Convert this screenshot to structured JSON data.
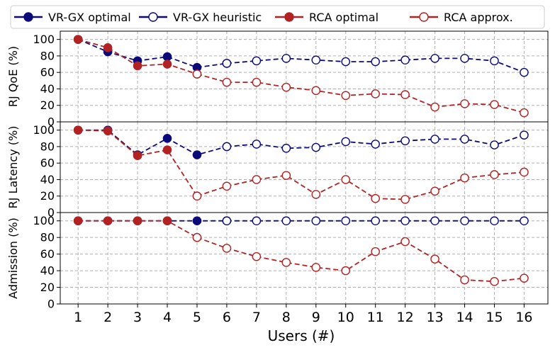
{
  "legend": [
    {
      "label": "VR-GX optimal",
      "color": "#0a0a78",
      "filled": true
    },
    {
      "label": "VR-GX heuristic",
      "color": "#0a0a78",
      "filled": false
    },
    {
      "label": "RCA optimal",
      "color": "#b22222",
      "filled": true
    },
    {
      "label": "RCA approx.",
      "color": "#b22222",
      "filled": false
    }
  ],
  "xlabel": "Users (#)",
  "chart_data": [
    {
      "type": "line",
      "ylabel": "RJ QoE (%)",
      "x": [
        1,
        2,
        3,
        4,
        5,
        6,
        7,
        8,
        9,
        10,
        11,
        12,
        13,
        14,
        15,
        16
      ],
      "ylim": [
        0,
        110
      ],
      "yticks": [
        0,
        20,
        40,
        60,
        80,
        100
      ],
      "grid": true,
      "series": [
        {
          "name": "VR-GX optimal",
          "color": "#0a0a78",
          "x": [
            1,
            2,
            3,
            4,
            5,
            6
          ],
          "values": [
            100,
            85,
            74,
            79,
            66,
            71
          ]
        },
        {
          "name": "VR-GX heuristic",
          "color": "#0a0a78",
          "x": [
            6,
            7,
            8,
            9,
            10,
            11,
            12,
            13,
            14,
            15,
            16
          ],
          "values": [
            71,
            74,
            77,
            75,
            73,
            73,
            75,
            77,
            77,
            74,
            60
          ]
        },
        {
          "name": "RCA optimal",
          "color": "#b22222",
          "x": [
            1,
            2,
            3,
            4,
            5
          ],
          "values": [
            100,
            90,
            68,
            70,
            58
          ]
        },
        {
          "name": "RCA approx.",
          "color": "#b22222",
          "x": [
            5,
            6,
            7,
            8,
            9,
            10,
            11,
            12,
            13,
            14,
            15,
            16
          ],
          "values": [
            58,
            48,
            48,
            42,
            38,
            32,
            34,
            33,
            18,
            22,
            21,
            11
          ]
        }
      ]
    },
    {
      "type": "line",
      "ylabel": "RJ Latency (%)",
      "x": [
        1,
        2,
        3,
        4,
        5,
        6,
        7,
        8,
        9,
        10,
        11,
        12,
        13,
        14,
        15,
        16
      ],
      "ylim": [
        0,
        110
      ],
      "yticks": [
        0,
        20,
        40,
        60,
        80,
        100
      ],
      "grid": true,
      "series": [
        {
          "name": "VR-GX optimal",
          "color": "#0a0a78",
          "x": [
            1,
            2,
            3,
            4,
            5,
            6
          ],
          "values": [
            100,
            100,
            70,
            90,
            70,
            80
          ]
        },
        {
          "name": "VR-GX heuristic",
          "color": "#0a0a78",
          "x": [
            6,
            7,
            8,
            9,
            10,
            11,
            12,
            13,
            14,
            15,
            16
          ],
          "values": [
            80,
            83,
            78,
            79,
            86,
            83,
            87,
            89,
            89,
            82,
            94
          ]
        },
        {
          "name": "RCA optimal",
          "color": "#b22222",
          "x": [
            1,
            2,
            3,
            4,
            5
          ],
          "values": [
            100,
            99,
            69,
            76,
            20
          ]
        },
        {
          "name": "RCA approx.",
          "color": "#b22222",
          "x": [
            5,
            6,
            7,
            8,
            9,
            10,
            11,
            12,
            13,
            14,
            15,
            16
          ],
          "values": [
            20,
            32,
            40,
            45,
            22,
            40,
            17,
            16,
            26,
            42,
            46,
            49
          ]
        }
      ]
    },
    {
      "type": "line",
      "ylabel": "Admission (%)",
      "x": [
        1,
        2,
        3,
        4,
        5,
        6,
        7,
        8,
        9,
        10,
        11,
        12,
        13,
        14,
        15,
        16
      ],
      "ylim": [
        0,
        110
      ],
      "yticks": [
        0,
        20,
        40,
        60,
        80,
        100
      ],
      "grid": true,
      "series": [
        {
          "name": "VR-GX optimal",
          "color": "#0a0a78",
          "x": [
            1,
            2,
            3,
            4,
            5,
            6
          ],
          "values": [
            100,
            100,
            100,
            100,
            100,
            100
          ]
        },
        {
          "name": "VR-GX heuristic",
          "color": "#0a0a78",
          "x": [
            6,
            7,
            8,
            9,
            10,
            11,
            12,
            13,
            14,
            15,
            16
          ],
          "values": [
            100,
            100,
            100,
            100,
            100,
            100,
            100,
            100,
            100,
            100,
            100
          ]
        },
        {
          "name": "RCA optimal",
          "color": "#b22222",
          "x": [
            1,
            2,
            3,
            4,
            5
          ],
          "values": [
            100,
            100,
            100,
            100,
            80
          ]
        },
        {
          "name": "RCA approx.",
          "color": "#b22222",
          "x": [
            5,
            6,
            7,
            8,
            9,
            10,
            11,
            12,
            13,
            14,
            15,
            16
          ],
          "values": [
            80,
            67,
            57,
            50,
            44,
            40,
            63,
            75,
            54,
            29,
            27,
            31
          ]
        }
      ]
    }
  ]
}
